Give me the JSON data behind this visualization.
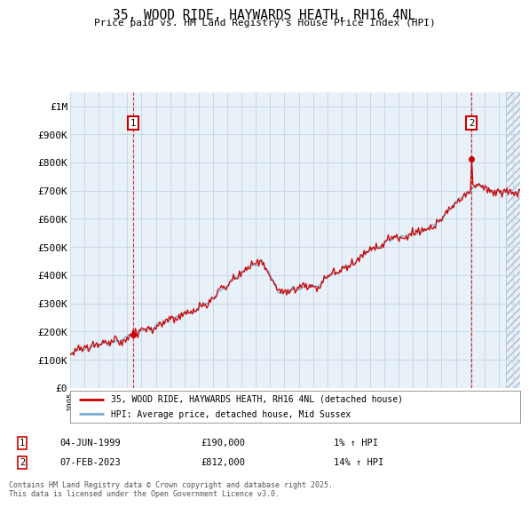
{
  "title": "35, WOOD RIDE, HAYWARDS HEATH, RH16 4NL",
  "subtitle": "Price paid vs. HM Land Registry's House Price Index (HPI)",
  "legend_line1": "35, WOOD RIDE, HAYWARDS HEATH, RH16 4NL (detached house)",
  "legend_line2": "HPI: Average price, detached house, Mid Sussex",
  "annotation1_date": "04-JUN-1999",
  "annotation1_price": "£190,000",
  "annotation1_hpi": "1% ↑ HPI",
  "annotation2_date": "07-FEB-2023",
  "annotation2_price": "£812,000",
  "annotation2_hpi": "14% ↑ HPI",
  "footnote": "Contains HM Land Registry data © Crown copyright and database right 2025.\nThis data is licensed under the Open Government Licence v3.0.",
  "red_line_color": "#cc0000",
  "blue_line_color": "#7aadcf",
  "dot_color": "#cc0000",
  "background_color": "#ffffff",
  "grid_color": "#c8d8e8",
  "chart_bg": "#e8f0f8",
  "ylim": [
    0,
    1050000
  ],
  "yticks": [
    0,
    100000,
    200000,
    300000,
    400000,
    500000,
    600000,
    700000,
    800000,
    900000,
    1000000
  ],
  "ytick_labels": [
    "£0",
    "£100K",
    "£200K",
    "£300K",
    "£400K",
    "£500K",
    "£600K",
    "£700K",
    "£800K",
    "£900K",
    "£1M"
  ],
  "start_year": 1995.0,
  "end_year": 2026.5,
  "purchase1_year": 1999.42,
  "purchase1_price": 190000,
  "purchase2_year": 2023.09,
  "purchase2_price": 812000
}
